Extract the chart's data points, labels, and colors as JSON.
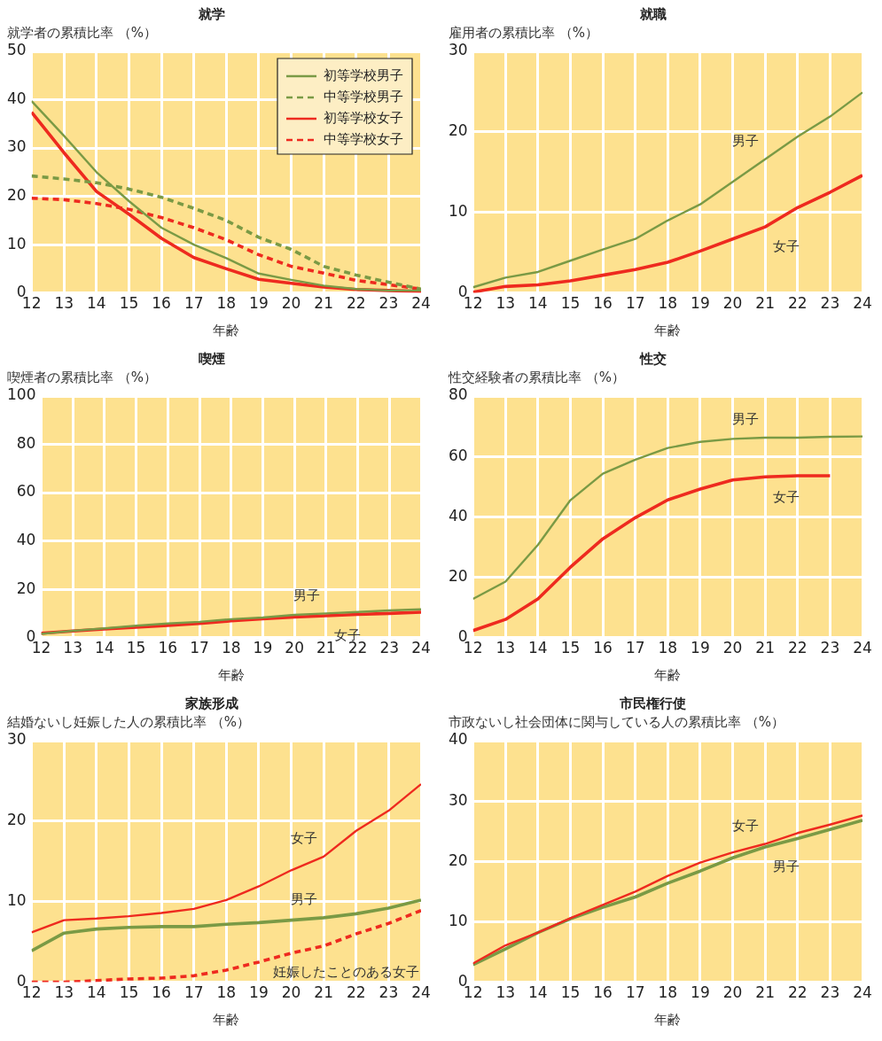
{
  "chart_data": [
    {
      "type": "line",
      "title": "就学",
      "ylabel": "就学者の累積比率 （%）",
      "xlabel": "年齢",
      "x": [
        12,
        13,
        14,
        15,
        16,
        17,
        18,
        19,
        20,
        21,
        22,
        23,
        24
      ],
      "xlim": [
        12,
        24
      ],
      "xticks": [
        12,
        13,
        14,
        15,
        16,
        17,
        18,
        19,
        20,
        21,
        22,
        23,
        24
      ],
      "ylim": [
        0,
        50
      ],
      "yticks": [
        0,
        10,
        20,
        30,
        40,
        50
      ],
      "grid": true,
      "legend": "top right",
      "series": [
        {
          "name": "初等学校男子",
          "color": "#7a9a45",
          "line_style": "solid",
          "values": [
            39.7,
            32.5,
            25,
            19,
            13.5,
            10,
            7.2,
            4,
            2.7,
            1.5,
            0.8,
            0.5,
            0.5
          ]
        },
        {
          "name": "中等学校男子",
          "color": "#7a9a45",
          "line_style": "dashed",
          "values": [
            24.2,
            23.6,
            22.8,
            21.5,
            19.8,
            17.5,
            15,
            11.5,
            9,
            5.5,
            3.7,
            2.2,
            0.8
          ]
        },
        {
          "name": "初等学校女子",
          "color": "#ee2a1f",
          "line_style": "solid",
          "values": [
            37.4,
            29,
            21,
            16.3,
            11.3,
            7.3,
            5,
            2.8,
            2,
            1.2,
            0.7,
            0.5,
            0.3
          ]
        },
        {
          "name": "中等学校女子",
          "color": "#ee2a1f",
          "line_style": "dashed",
          "values": [
            19.6,
            19.3,
            18.5,
            17.3,
            15.6,
            13.5,
            11,
            7.9,
            5.5,
            4.1,
            2.6,
            1.7,
            0.8
          ]
        }
      ]
    },
    {
      "type": "line",
      "title": "就職",
      "ylabel": "雇用者の累積比率 （%）",
      "xlabel": "年齢",
      "x": [
        12,
        13,
        14,
        15,
        16,
        17,
        18,
        19,
        20,
        21,
        22,
        23,
        24
      ],
      "xlim": [
        12,
        24
      ],
      "xticks": [
        12,
        13,
        14,
        15,
        16,
        17,
        18,
        19,
        20,
        21,
        22,
        23,
        24
      ],
      "ylim": [
        0,
        30
      ],
      "yticks": [
        0,
        10,
        20,
        30
      ],
      "grid": true,
      "series": [
        {
          "name": "男子",
          "color": "#7a9a45",
          "values": [
            0.7,
            1.9,
            2.6,
            4,
            5.4,
            6.7,
            9,
            11,
            13.8,
            16.6,
            19.4,
            21.9,
            24.9
          ]
        },
        {
          "name": "女子",
          "color": "#ee2a1f",
          "values": [
            0.1,
            0.8,
            1,
            1.5,
            2.2,
            2.9,
            3.8,
            5.2,
            6.7,
            8.2,
            10.6,
            12.5,
            14.6
          ]
        }
      ]
    },
    {
      "type": "line",
      "title": "喫煙",
      "ylabel": "喫煙者の累積比率 （%）",
      "xlabel": "年齢",
      "x": [
        12,
        13,
        14,
        15,
        16,
        17,
        18,
        19,
        20,
        21,
        22,
        23,
        24
      ],
      "xlim": [
        12,
        24
      ],
      "xticks": [
        12,
        13,
        14,
        15,
        16,
        17,
        18,
        19,
        20,
        21,
        22,
        23,
        24
      ],
      "ylim": [
        0,
        100
      ],
      "yticks": [
        0,
        20,
        40,
        60,
        80,
        100
      ],
      "grid": true,
      "series": [
        {
          "name": "男子",
          "color": "#7a9a45",
          "values": [
            1.5,
            2.8,
            3.8,
            4.9,
            5.8,
            6.5,
            7.6,
            8.3,
            9.4,
            10,
            10.6,
            11.2,
            11.7
          ]
        },
        {
          "name": "女子",
          "color": "#ee2a1f",
          "values": [
            1.8,
            2.7,
            3.5,
            4.3,
            5,
            5.8,
            6.9,
            7.8,
            8.5,
            9,
            9.6,
            10,
            10.5
          ]
        }
      ]
    },
    {
      "type": "line",
      "title": "性交",
      "ylabel": "性交経験者の累積比率 （%）",
      "xlabel": "年齢",
      "x": [
        12,
        13,
        14,
        15,
        16,
        17,
        18,
        19,
        20,
        21,
        22,
        23,
        24
      ],
      "xlim": [
        12,
        24
      ],
      "xticks": [
        12,
        13,
        14,
        15,
        16,
        17,
        18,
        19,
        20,
        21,
        22,
        23,
        24
      ],
      "ylim": [
        0,
        80
      ],
      "yticks": [
        0,
        20,
        40,
        60,
        80
      ],
      "grid": true,
      "series": [
        {
          "name": "男子",
          "color": "#7a9a45",
          "values": [
            12.8,
            18.5,
            30.7,
            45.5,
            54.3,
            58.9,
            62.8,
            64.8,
            65.8,
            66.2,
            66.2,
            66.5,
            66.6
          ]
        },
        {
          "name": "女子",
          "color": "#ee2a1f",
          "values": [
            2.3,
            6,
            12.8,
            23.3,
            32.7,
            39.7,
            45.6,
            49.2,
            52.2,
            53.2,
            53.6,
            53.6,
            null
          ]
        }
      ]
    },
    {
      "type": "line",
      "title": "家族形成",
      "ylabel": "結婚ないし妊娠した人の累積比率 （%）",
      "xlabel": "年齢",
      "x": [
        12,
        13,
        14,
        15,
        16,
        17,
        18,
        19,
        20,
        21,
        22,
        23,
        24
      ],
      "xlim": [
        12,
        24
      ],
      "xticks": [
        12,
        13,
        14,
        15,
        16,
        17,
        18,
        19,
        20,
        21,
        22,
        23,
        24
      ],
      "ylim": [
        0,
        30
      ],
      "yticks": [
        0,
        10,
        20,
        30
      ],
      "grid": true,
      "series": [
        {
          "name": "女子",
          "color": "#ee2a1f",
          "line_style": "solid",
          "values": [
            6.2,
            7.7,
            7.9,
            8.2,
            8.6,
            9.1,
            10.2,
            11.9,
            13.9,
            15.6,
            18.8,
            21.3,
            24.6
          ]
        },
        {
          "name": "男子",
          "color": "#7a9a45",
          "line_style": "solid",
          "values": [
            3.9,
            6.1,
            6.6,
            6.8,
            6.9,
            6.9,
            7.2,
            7.4,
            7.7,
            8,
            8.5,
            9.2,
            10.2
          ]
        },
        {
          "name": "妊娠したことのある女子",
          "color": "#ee2a1f",
          "line_style": "dashed",
          "values": [
            0,
            0,
            0.2,
            0.4,
            0.5,
            0.8,
            1.5,
            2.5,
            3.6,
            4.5,
            6,
            7.3,
            8.9
          ]
        }
      ]
    },
    {
      "type": "line",
      "title": "市民権行使",
      "ylabel": "市政ないし社会団体に関与している人の累積比率 （%）",
      "xlabel": "年齢",
      "x": [
        12,
        13,
        14,
        15,
        16,
        17,
        18,
        19,
        20,
        21,
        22,
        23,
        24
      ],
      "xlim": [
        12,
        24
      ],
      "xticks": [
        12,
        13,
        14,
        15,
        16,
        17,
        18,
        19,
        20,
        21,
        22,
        23,
        24
      ],
      "ylim": [
        0,
        40
      ],
      "yticks": [
        0,
        10,
        20,
        30,
        40
      ],
      "grid": true,
      "series": [
        {
          "name": "女子",
          "color": "#ee2a1f",
          "values": [
            3.1,
            6.1,
            8.2,
            10.6,
            12.8,
            15,
            17.6,
            19.8,
            21.5,
            22.9,
            24.7,
            26.1,
            27.6
          ]
        },
        {
          "name": "男子",
          "color": "#7a9a45",
          "values": [
            2.9,
            5.5,
            8.2,
            10.5,
            12.4,
            14.1,
            16.4,
            18.4,
            20.6,
            22.4,
            23.8,
            25.3,
            26.8
          ]
        }
      ]
    }
  ]
}
